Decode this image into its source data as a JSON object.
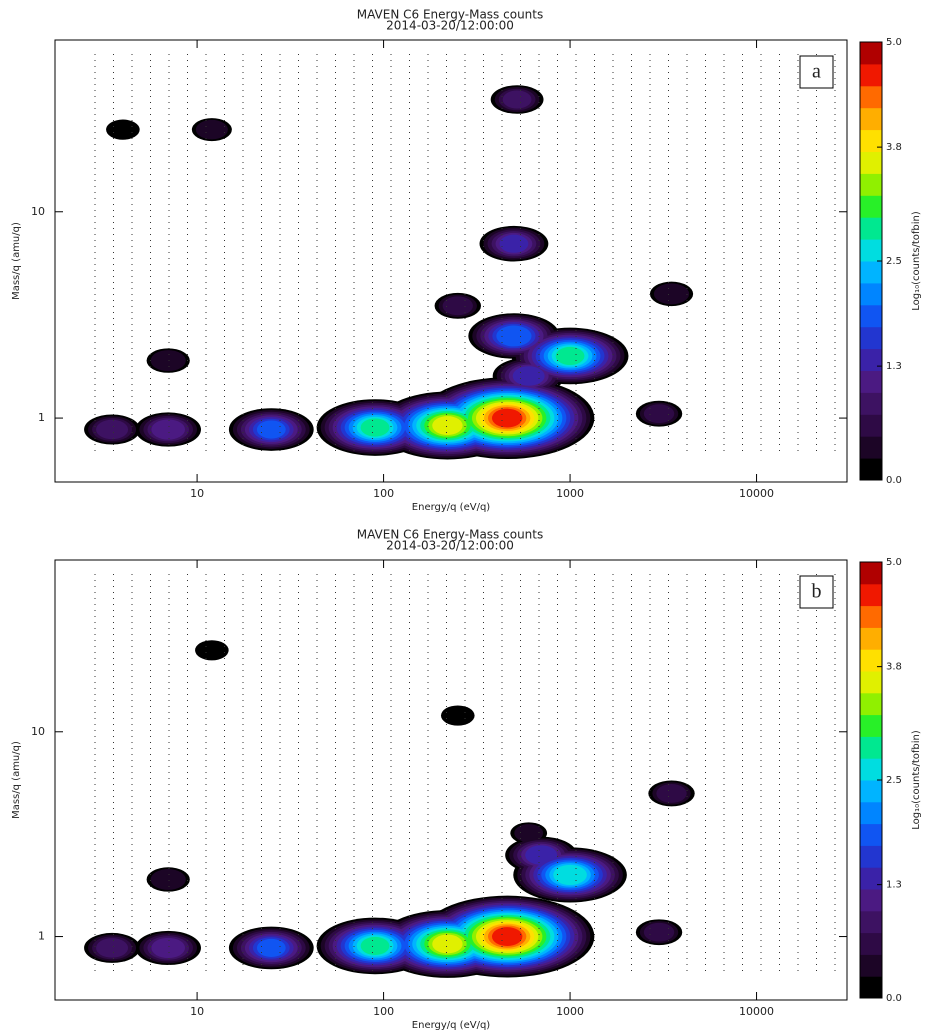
{
  "chart_data": [
    {
      "type": "contour",
      "log_x": true,
      "log_y": true,
      "title": "MAVEN  C6 Energy-Mass counts",
      "subtitle": "2014-03-20/12:00:00",
      "x_label": "Energy/q  (eV/q)",
      "y_label": "Mass/q (amu/q)",
      "colorbar_label": "Log₁₀(counts/tofbin)",
      "panel_label": "a",
      "xlim": [
        1.73,
        30550
      ],
      "xticks": [
        10,
        100,
        1000,
        10000
      ],
      "ylim": [
        0.49,
        68
      ],
      "yticks": [
        1,
        10
      ],
      "zlim": [
        0,
        5
      ],
      "zticks": [
        {
          "value": 0,
          "label": "0.0"
        },
        1.3,
        2.5,
        3.8,
        {
          "value": 5,
          "label": "5.0"
        }
      ],
      "colormap": [
        "#000000",
        "#1c0526",
        "#2e0a45",
        "#3d1262",
        "#4b1a82",
        "#3a22a8",
        "#2236d0",
        "#1055f2",
        "#0085ff",
        "#00b4ff",
        "#00dde0",
        "#00e890",
        "#28f028",
        "#90f000",
        "#e0f000",
        "#ffe000",
        "#ffae00",
        "#ff6a00",
        "#f01800",
        "#b00000"
      ],
      "x": [
        460,
        220,
        90,
        25,
        7,
        3.5,
        1000,
        500,
        500,
        520,
        7,
        12,
        3000,
        3500,
        250,
        600,
        4
      ],
      "y": [
        1.0,
        0.92,
        0.9,
        0.88,
        0.88,
        0.88,
        2.0,
        2.5,
        7,
        35,
        1.9,
        25,
        1.05,
        4,
        3.5,
        1.6,
        25
      ],
      "values": [
        4.7,
        3.7,
        2.9,
        1.9,
        1.3,
        1.0,
        2.9,
        2.1,
        1.4,
        0.9,
        0.6,
        0.5,
        0.7,
        0.6,
        0.7,
        1.5,
        0.3
      ]
    },
    {
      "type": "contour",
      "log_x": true,
      "log_y": true,
      "title": "MAVEN  C6 Energy-Mass counts",
      "subtitle": "2014-03-20/12:00:00",
      "x_label": "Energy/q  (eV/q)",
      "y_label": "Mass/q (amu/q)",
      "colorbar_label": "Log₁₀(counts/tofbin)",
      "panel_label": "b",
      "xlim": [
        1.73,
        30550
      ],
      "xticks": [
        10,
        100,
        1000,
        10000
      ],
      "ylim": [
        0.49,
        69
      ],
      "yticks": [
        1,
        10
      ],
      "zlim": [
        0,
        5
      ],
      "zticks": [
        {
          "value": 0,
          "label": "0.0"
        },
        1.3,
        2.5,
        3.8,
        {
          "value": 5,
          "label": "5.0"
        }
      ],
      "colormap": [
        "#000000",
        "#1c0526",
        "#2e0a45",
        "#3d1262",
        "#4b1a82",
        "#3a22a8",
        "#2236d0",
        "#1055f2",
        "#0085ff",
        "#00b4ff",
        "#00dde0",
        "#00e890",
        "#28f028",
        "#90f000",
        "#e0f000",
        "#ffe000",
        "#ffae00",
        "#ff6a00",
        "#f01800",
        "#b00000"
      ],
      "x": [
        460,
        220,
        90,
        25,
        7,
        3.5,
        1000,
        700,
        3000,
        3500,
        7,
        12,
        600,
        250
      ],
      "y": [
        1.0,
        0.92,
        0.9,
        0.88,
        0.88,
        0.88,
        2.0,
        2.5,
        1.05,
        5,
        1.9,
        25,
        3.2,
        12
      ],
      "values": [
        4.7,
        3.7,
        2.9,
        1.9,
        1.3,
        1.0,
        2.8,
        1.5,
        0.7,
        0.7,
        0.6,
        0.3,
        0.4,
        0.3
      ]
    }
  ]
}
